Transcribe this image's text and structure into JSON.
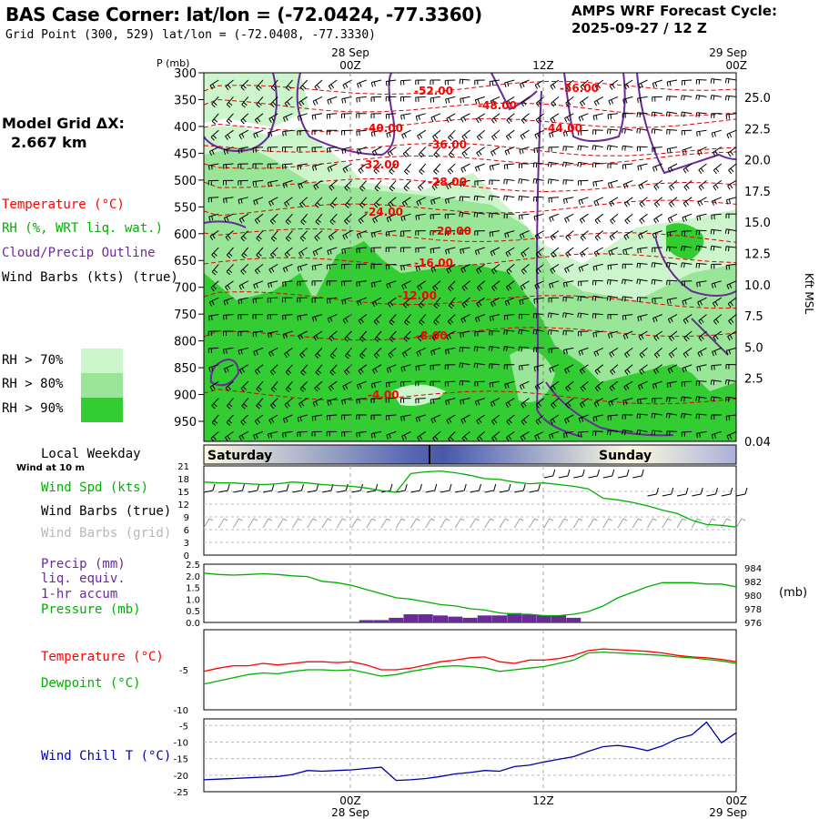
{
  "header": {
    "title": "BAS Case Corner:  lat/lon = (-72.0424, -77.3360)",
    "subtitle": "Grid Point (300, 529) lat/lon = (-72.0408, -77.3330)",
    "cycle_line1": "AMPS WRF Forecast Cycle:",
    "cycle_line2": "2025-09-27 / 12  Z"
  },
  "left": {
    "grid_label": "Model Grid ΔX:",
    "grid_value": "2.667 km",
    "temp_label": "Temperature (°C)",
    "rh_label": "RH (%, WRT liq. wat.)",
    "cloud_label": "Cloud/Precip Outline",
    "wind_label": "Wind Barbs (kts) (true)",
    "rh70": "RH > 70%",
    "rh80": "RH > 80%",
    "rh90": "RH > 90%",
    "local_weekday": "Local Weekday",
    "wind10m": "Wind at 10 m",
    "wspd": "Wind Spd (kts)",
    "wbarb_true": "Wind Barbs (true)",
    "wbarb_grid": "Wind Barbs (grid)",
    "precip1": "Precip (mm)",
    "precip2": "liq. equiv.",
    "precip3": "1-hr accum",
    "pressure": "Pressure (mb)",
    "temp2": "Temperature (°C)",
    "dew": "Dewpoint (°C)",
    "windchill": "Wind Chill T (°C)"
  },
  "time_axis": {
    "top_p_label": "P (mb)",
    "top_labels": [
      {
        "l1": "28 Sep",
        "l2": "00Z"
      },
      {
        "l1": "",
        "l2": "12Z"
      },
      {
        "l1": "29 Sep",
        "l2": "00Z"
      }
    ],
    "bottom_labels": [
      {
        "l1": "00Z",
        "l2": "28 Sep"
      },
      {
        "l1": "12Z",
        "l2": ""
      },
      {
        "l1": "00Z",
        "l2": "29 Sep"
      }
    ],
    "days": [
      "Saturday",
      "Sunday"
    ]
  },
  "colors": {
    "temperature": "#ff0000",
    "rh_text": "#00b000",
    "cloud": "#6a2a9a",
    "wind": "#000000",
    "rh70": "#ccf5cc",
    "rh80": "#99e699",
    "rh90": "#33cc33",
    "precip": "#6a2a9a",
    "windchill": "#0000aa",
    "grid_barbs": "#a0a0a0"
  },
  "chart_data": [
    {
      "type": "heatmap",
      "title": "Time-height cross section",
      "ylabel": "P (mb)",
      "y2label": "Kft MSL",
      "pressure_ticks": [
        300,
        350,
        400,
        450,
        500,
        550,
        600,
        650,
        700,
        750,
        800,
        850,
        900,
        950
      ],
      "kft_ticks": [
        "25.0",
        "22.5",
        "20.0",
        "17.5",
        "15.0",
        "12.5",
        "10.0",
        "7.5",
        "5.0",
        "2.5",
        "0.04"
      ],
      "temperature_contours": [
        "-52.00",
        "-56.00",
        "-48.00",
        "-40.00",
        "-44.00",
        "-36.00",
        "-32.00",
        "-28.00",
        "-24.00",
        "-20.00",
        "-16.00",
        "-12.00",
        "-8.00",
        "-4.00"
      ],
      "rh_thresholds": [
        "70",
        "80",
        "90"
      ]
    },
    {
      "type": "line",
      "title": "Wind Spd (kts)",
      "y_ticks": [
        "21",
        "18",
        "15",
        "12",
        "9",
        "6",
        "3",
        "0"
      ],
      "ylim": [
        0,
        21
      ],
      "x": [
        0,
        1,
        2,
        3,
        4,
        5,
        6,
        7,
        8,
        9,
        10,
        11,
        12,
        13,
        14,
        15,
        16,
        17,
        18,
        19,
        20,
        21,
        22,
        23,
        24,
        25,
        26,
        27,
        28,
        29,
        30,
        31,
        32,
        33,
        34,
        35,
        36
      ],
      "series": [
        {
          "name": "Wind Spd",
          "values": [
            17.2,
            17.0,
            17.0,
            16.8,
            16.6,
            16.8,
            17.2,
            17.0,
            16.6,
            16.4,
            16.2,
            15.8,
            15.2,
            14.8,
            19.2,
            19.6,
            19.8,
            19.4,
            18.8,
            18.0,
            17.8,
            17.2,
            16.8,
            17.0,
            16.6,
            16.2,
            15.6,
            13.4,
            13.0,
            12.4,
            11.6,
            10.6,
            9.8,
            8.2,
            7.2,
            7.0,
            6.6
          ]
        }
      ]
    },
    {
      "type": "bar",
      "title": "Precip (mm) / Pressure (mb)",
      "y_ticks": [
        "2.5",
        "2.0",
        "1.5",
        "1.0",
        "0.5",
        "0.0"
      ],
      "y2_ticks": [
        "984",
        "982",
        "980",
        "978",
        "976"
      ],
      "ylim": [
        0,
        2.5
      ],
      "y2lim": [
        976,
        984.5
      ],
      "precip": [
        0,
        0,
        0,
        0,
        0,
        0,
        0,
        0,
        0,
        0,
        0,
        0.1,
        0.1,
        0.2,
        0.35,
        0.35,
        0.3,
        0.25,
        0.2,
        0.3,
        0.3,
        0.4,
        0.35,
        0.3,
        0.3,
        0.2,
        0,
        0,
        0,
        0,
        0,
        0,
        0,
        0,
        0,
        0,
        0
      ],
      "pressure": [
        983.2,
        983.0,
        982.9,
        983.0,
        983.1,
        983.0,
        982.8,
        982.7,
        982.0,
        981.8,
        981.4,
        980.8,
        980.2,
        979.6,
        979.4,
        979.0,
        978.6,
        978.4,
        978.0,
        977.8,
        977.4,
        977.2,
        977.2,
        977.0,
        977.0,
        977.2,
        977.6,
        978.4,
        979.6,
        980.4,
        981.2,
        981.8,
        981.8,
        981.8,
        981.6,
        981.6,
        981.2
      ]
    },
    {
      "type": "line",
      "title": "Temperature / Dewpoint (°C)",
      "y_ticks": [
        "-5",
        "-10"
      ],
      "ylim": [
        -10,
        0
      ],
      "series": [
        {
          "name": "Temperature",
          "values": [
            -5.2,
            -4.8,
            -4.5,
            -4.5,
            -4.2,
            -4.4,
            -4.2,
            -4.0,
            -4.0,
            -4.1,
            -4.0,
            -4.4,
            -5.0,
            -5.0,
            -4.8,
            -4.4,
            -4.0,
            -3.8,
            -3.5,
            -3.4,
            -4.0,
            -4.2,
            -3.8,
            -3.8,
            -3.6,
            -3.2,
            -2.6,
            -2.4,
            -2.5,
            -2.6,
            -2.7,
            -2.9,
            -3.2,
            -3.4,
            -3.5,
            -3.7,
            -4.0
          ]
        },
        {
          "name": "Dewpoint",
          "values": [
            -6.8,
            -6.4,
            -6.0,
            -5.6,
            -5.4,
            -5.5,
            -5.2,
            -5.0,
            -5.0,
            -5.1,
            -5.0,
            -5.4,
            -5.8,
            -5.6,
            -5.2,
            -4.9,
            -4.6,
            -4.5,
            -4.6,
            -4.8,
            -5.2,
            -5.0,
            -4.8,
            -4.6,
            -4.2,
            -3.8,
            -2.9,
            -2.8,
            -2.9,
            -3.0,
            -3.1,
            -3.2,
            -3.4,
            -3.5,
            -3.7,
            -3.9,
            -4.2
          ]
        }
      ]
    },
    {
      "type": "line",
      "title": "Wind Chill T (°C)",
      "y_ticks": [
        "-5",
        "-10",
        "-15",
        "-20",
        "-25"
      ],
      "ylim": [
        -25,
        -3
      ],
      "series": [
        {
          "name": "Wind Chill",
          "values": [
            -21.4,
            -21.2,
            -21.0,
            -20.8,
            -20.6,
            -20.4,
            -19.8,
            -18.6,
            -18.8,
            -18.6,
            -18.4,
            -18.0,
            -17.6,
            -21.6,
            -21.4,
            -21.0,
            -20.4,
            -19.6,
            -19.2,
            -18.6,
            -18.8,
            -17.4,
            -17.0,
            -16.0,
            -15.2,
            -14.4,
            -12.8,
            -11.4,
            -11.0,
            -11.6,
            -12.6,
            -11.2,
            -9.0,
            -7.8,
            -4.0,
            -10.2,
            -7.2
          ]
        }
      ]
    }
  ]
}
